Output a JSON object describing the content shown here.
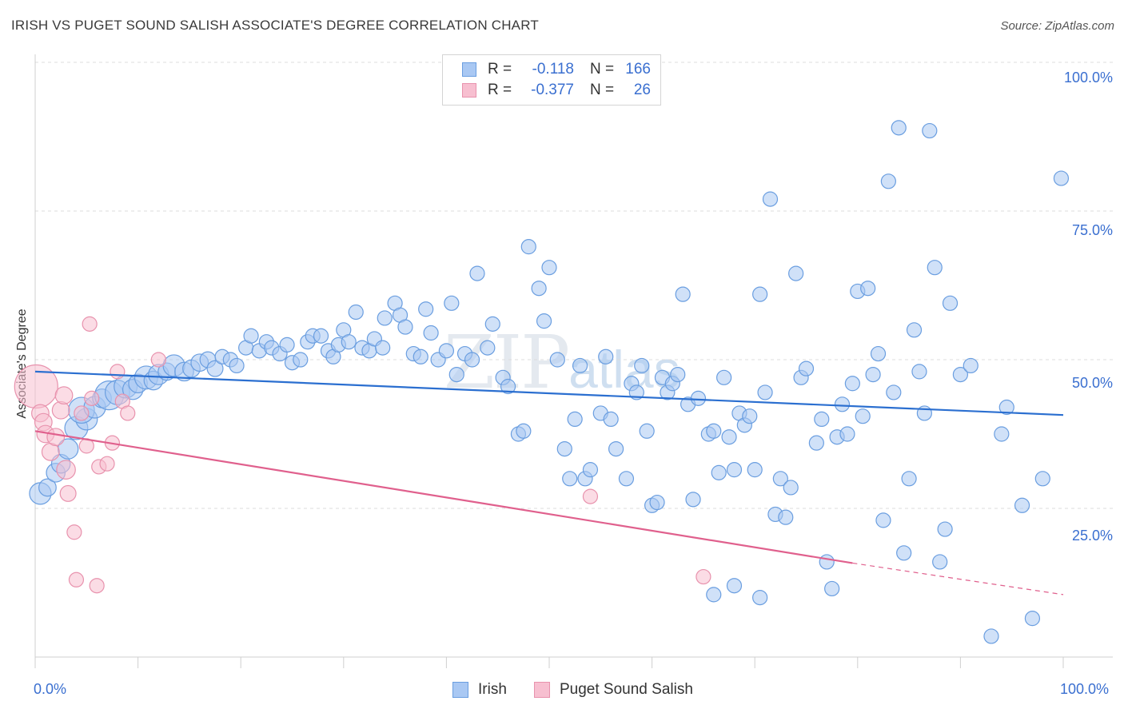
{
  "title": "IRISH VS PUGET SOUND SALISH ASSOCIATE'S DEGREE CORRELATION CHART",
  "source": "Source: ZipAtlas.com",
  "watermark": {
    "zip": "ZIP",
    "atlas": "atlas"
  },
  "legend": {
    "rows": [
      {
        "r_label": "R =",
        "r_value": "-0.118",
        "n_label": "N =",
        "n_value": "166"
      },
      {
        "r_label": "R =",
        "r_value": "-0.377",
        "n_label": "N =",
        "n_value": "26"
      }
    ]
  },
  "bottom_legend": {
    "irish": "Irish",
    "salish": "Puget Sound Salish"
  },
  "colors": {
    "irish_fill": "#a9c8f3",
    "irish_stroke": "#6a9ee0",
    "irish_line": "#2b6fd0",
    "salish_fill": "#f7bfd0",
    "salish_stroke": "#e892ad",
    "salish_line": "#e0608d",
    "tick_text": "#3a6fd0",
    "grid": "#dcdcdc"
  },
  "chart_data": {
    "type": "scatter",
    "title": "IRISH VS PUGET SOUND SALISH ASSOCIATE'S DEGREE CORRELATION CHART",
    "xlabel": "",
    "ylabel": "Associate's Degree",
    "xlim": [
      0,
      100
    ],
    "ylim": [
      0,
      100
    ],
    "x_tick_labels": [
      "0.0%",
      "100.0%"
    ],
    "y_tick_labels": [
      "25.0%",
      "50.0%",
      "75.0%",
      "100.0%"
    ],
    "y_ticks": [
      25,
      50,
      75,
      100
    ],
    "grid": true,
    "legend_position": "top-center",
    "series": [
      {
        "name": "Irish",
        "r": -0.118,
        "n": 166,
        "trend": {
          "x": [
            0,
            100
          ],
          "y": [
            48.0,
            40.7
          ]
        },
        "points": [
          [
            0.5,
            27.5,
            1.5
          ],
          [
            1.2,
            28.5,
            1.2
          ],
          [
            2.0,
            31.0,
            1.3
          ],
          [
            2.5,
            32.5,
            1.3
          ],
          [
            3.2,
            35.0,
            1.4
          ],
          [
            4.0,
            38.5,
            1.6
          ],
          [
            5.0,
            40.0,
            1.5
          ],
          [
            4.5,
            41.5,
            1.8
          ],
          [
            5.8,
            42.0,
            1.5
          ],
          [
            6.5,
            43.5,
            1.3
          ],
          [
            7.2,
            44.0,
            2.0
          ],
          [
            8.0,
            44.5,
            1.7
          ],
          [
            8.8,
            45.5,
            1.6
          ],
          [
            9.5,
            45.0,
            1.4
          ],
          [
            10.0,
            46.0,
            1.3
          ],
          [
            10.8,
            47.0,
            1.6
          ],
          [
            11.5,
            46.5,
            1.3
          ],
          [
            12.0,
            47.5,
            1.4
          ],
          [
            12.8,
            48.0,
            1.2
          ],
          [
            13.5,
            49.0,
            1.5
          ],
          [
            14.5,
            48.0,
            1.3
          ],
          [
            15.2,
            48.5,
            1.2
          ],
          [
            16.0,
            49.5,
            1.2
          ],
          [
            16.8,
            50.0,
            1.1
          ],
          [
            17.5,
            48.5,
            1.1
          ],
          [
            18.2,
            50.5,
            1.0
          ],
          [
            19.0,
            50.0,
            1.0
          ],
          [
            19.6,
            49.0,
            1.0
          ],
          [
            20.5,
            52.0,
            1.0
          ],
          [
            21.0,
            54.0,
            1.0
          ],
          [
            21.8,
            51.5,
            1.0
          ],
          [
            22.5,
            53.0,
            1.0
          ],
          [
            23.0,
            52.0,
            1.0
          ],
          [
            23.8,
            51.0,
            1.0
          ],
          [
            24.5,
            52.5,
            1.0
          ],
          [
            25.0,
            49.5,
            1.0
          ],
          [
            25.8,
            50.0,
            1.0
          ],
          [
            26.5,
            53.0,
            1.0
          ],
          [
            27.0,
            54.0,
            1.0
          ],
          [
            27.8,
            54.0,
            1.0
          ],
          [
            28.5,
            51.5,
            1.0
          ],
          [
            29.0,
            50.5,
            1.0
          ],
          [
            29.5,
            52.5,
            1.0
          ],
          [
            30.0,
            55.0,
            1.0
          ],
          [
            30.5,
            53.0,
            1.0
          ],
          [
            31.2,
            58.0,
            1.0
          ],
          [
            31.8,
            52.0,
            1.0
          ],
          [
            32.5,
            51.5,
            1.0
          ],
          [
            33.0,
            53.5,
            1.0
          ],
          [
            33.8,
            52.0,
            1.0
          ],
          [
            34.0,
            57.0,
            1.0
          ],
          [
            35.0,
            59.5,
            1.0
          ],
          [
            35.5,
            57.5,
            1.0
          ],
          [
            36.0,
            55.5,
            1.0
          ],
          [
            36.8,
            51.0,
            1.0
          ],
          [
            37.5,
            50.5,
            1.0
          ],
          [
            38.0,
            58.5,
            1.0
          ],
          [
            38.5,
            54.5,
            1.0
          ],
          [
            39.2,
            50.0,
            1.0
          ],
          [
            40.0,
            51.5,
            1.0
          ],
          [
            40.5,
            59.5,
            1.0
          ],
          [
            41.0,
            47.5,
            1.0
          ],
          [
            41.8,
            51.0,
            1.0
          ],
          [
            42.5,
            50.0,
            1.0
          ],
          [
            43.0,
            64.5,
            1.0
          ],
          [
            44.0,
            52.0,
            1.0
          ],
          [
            44.5,
            56.0,
            1.0
          ],
          [
            45.5,
            47.0,
            1.0
          ],
          [
            46.0,
            45.5,
            1.0
          ],
          [
            47.0,
            37.5,
            1.0
          ],
          [
            47.5,
            38.0,
            1.0
          ],
          [
            48.0,
            69.0,
            1.0
          ],
          [
            49.0,
            62.0,
            1.0
          ],
          [
            49.5,
            56.5,
            1.0
          ],
          [
            50.0,
            65.5,
            1.0
          ],
          [
            50.8,
            50.0,
            1.0
          ],
          [
            51.5,
            35.0,
            1.0
          ],
          [
            52.0,
            30.0,
            1.0
          ],
          [
            52.5,
            40.0,
            1.0
          ],
          [
            53.0,
            49.0,
            1.0
          ],
          [
            53.5,
            30.0,
            1.0
          ],
          [
            54.0,
            31.5,
            1.0
          ],
          [
            55.0,
            41.0,
            1.0
          ],
          [
            55.5,
            50.5,
            1.0
          ],
          [
            56.0,
            40.0,
            1.0
          ],
          [
            56.5,
            35.0,
            1.0
          ],
          [
            57.5,
            30.0,
            1.0
          ],
          [
            58.0,
            46.0,
            1.0
          ],
          [
            58.5,
            44.5,
            1.0
          ],
          [
            59.0,
            49.0,
            1.0
          ],
          [
            59.5,
            38.0,
            1.0
          ],
          [
            60.0,
            25.5,
            1.0
          ],
          [
            60.5,
            26.0,
            1.0
          ],
          [
            61.0,
            47.0,
            1.0
          ],
          [
            61.5,
            44.5,
            1.0
          ],
          [
            62.0,
            46.0,
            1.0
          ],
          [
            62.5,
            47.5,
            1.0
          ],
          [
            63.0,
            61.0,
            1.0
          ],
          [
            63.5,
            42.5,
            1.0
          ],
          [
            64.0,
            26.5,
            1.0
          ],
          [
            64.5,
            43.5,
            1.0
          ],
          [
            65.5,
            37.5,
            1.0
          ],
          [
            66.0,
            38.0,
            1.0
          ],
          [
            66.5,
            31.0,
            1.0
          ],
          [
            67.0,
            47.0,
            1.0
          ],
          [
            67.5,
            37.0,
            1.0
          ],
          [
            68.0,
            31.5,
            1.0
          ],
          [
            68.5,
            41.0,
            1.0
          ],
          [
            69.0,
            39.0,
            1.0
          ],
          [
            69.5,
            40.5,
            1.0
          ],
          [
            70.0,
            31.5,
            1.0
          ],
          [
            70.5,
            61.0,
            1.0
          ],
          [
            71.0,
            44.5,
            1.0
          ],
          [
            71.5,
            77.0,
            1.0
          ],
          [
            72.0,
            24.0,
            1.0
          ],
          [
            72.5,
            30.0,
            1.0
          ],
          [
            73.0,
            23.5,
            1.0
          ],
          [
            73.5,
            28.5,
            1.0
          ],
          [
            74.0,
            64.5,
            1.0
          ],
          [
            74.5,
            47.0,
            1.0
          ],
          [
            75.0,
            48.5,
            1.0
          ],
          [
            76.0,
            36.0,
            1.0
          ],
          [
            76.5,
            40.0,
            1.0
          ],
          [
            77.0,
            16.0,
            1.0
          ],
          [
            77.5,
            11.5,
            1.0
          ],
          [
            78.0,
            37.0,
            1.0
          ],
          [
            78.5,
            42.5,
            1.0
          ],
          [
            79.0,
            37.5,
            1.0
          ],
          [
            79.5,
            46.0,
            1.0
          ],
          [
            80.0,
            61.5,
            1.0
          ],
          [
            80.5,
            40.5,
            1.0
          ],
          [
            81.0,
            62.0,
            1.0
          ],
          [
            81.5,
            47.5,
            1.0
          ],
          [
            82.0,
            51.0,
            1.0
          ],
          [
            82.5,
            23.0,
            1.0
          ],
          [
            83.0,
            80.0,
            1.0
          ],
          [
            83.5,
            44.5,
            1.0
          ],
          [
            84.0,
            89.0,
            1.0
          ],
          [
            84.5,
            17.5,
            1.0
          ],
          [
            85.0,
            30.0,
            1.0
          ],
          [
            85.5,
            55.0,
            1.0
          ],
          [
            86.0,
            48.0,
            1.0
          ],
          [
            86.5,
            41.0,
            1.0
          ],
          [
            87.0,
            88.5,
            1.0
          ],
          [
            87.5,
            65.5,
            1.0
          ],
          [
            88.0,
            16.0,
            1.0
          ],
          [
            88.5,
            21.5,
            1.0
          ],
          [
            89.0,
            59.5,
            1.0
          ],
          [
            90.0,
            47.5,
            1.0
          ],
          [
            91.0,
            49.0,
            1.0
          ],
          [
            93.0,
            3.5,
            1.0
          ],
          [
            94.0,
            37.5,
            1.0
          ],
          [
            94.5,
            42.0,
            1.0
          ],
          [
            96.0,
            25.5,
            1.0
          ],
          [
            97.0,
            6.5,
            1.0
          ],
          [
            98.0,
            30.0,
            1.0
          ],
          [
            99.8,
            80.5,
            1.0
          ],
          [
            66.0,
            10.5,
            1.0
          ],
          [
            68.0,
            12.0,
            1.0
          ],
          [
            70.5,
            10.0,
            1.0
          ]
        ]
      },
      {
        "name": "Puget Sound Salish",
        "r": -0.377,
        "n": 26,
        "trend": {
          "x": [
            0,
            79.5
          ],
          "y": [
            38.0,
            15.8
          ]
        },
        "trend_dashed": {
          "x": [
            79.5,
            100
          ],
          "y": [
            15.8,
            10.5
          ]
        },
        "points": [
          [
            0.1,
            45.5,
            3.0
          ],
          [
            0.5,
            41.0,
            1.2
          ],
          [
            0.8,
            39.5,
            1.2
          ],
          [
            1.0,
            37.5,
            1.2
          ],
          [
            1.5,
            34.5,
            1.2
          ],
          [
            2.0,
            37.0,
            1.2
          ],
          [
            2.5,
            41.5,
            1.2
          ],
          [
            2.8,
            44.0,
            1.2
          ],
          [
            3.0,
            31.5,
            1.3
          ],
          [
            3.2,
            27.5,
            1.1
          ],
          [
            3.8,
            21.0,
            1.0
          ],
          [
            4.0,
            13.0,
            1.0
          ],
          [
            4.5,
            41.0,
            1.0
          ],
          [
            5.0,
            35.5,
            1.0
          ],
          [
            5.5,
            43.5,
            1.0
          ],
          [
            6.0,
            12.0,
            1.0
          ],
          [
            6.2,
            32.0,
            1.0
          ],
          [
            7.0,
            32.5,
            1.0
          ],
          [
            7.5,
            36.0,
            1.0
          ],
          [
            8.0,
            48.0,
            1.0
          ],
          [
            8.5,
            43.0,
            1.0
          ],
          [
            9.0,
            41.0,
            1.0
          ],
          [
            12.0,
            50.0,
            1.0
          ],
          [
            5.3,
            56.0,
            1.0
          ],
          [
            54.0,
            27.0,
            1.0
          ],
          [
            65.0,
            13.5,
            1.0
          ]
        ]
      }
    ]
  }
}
